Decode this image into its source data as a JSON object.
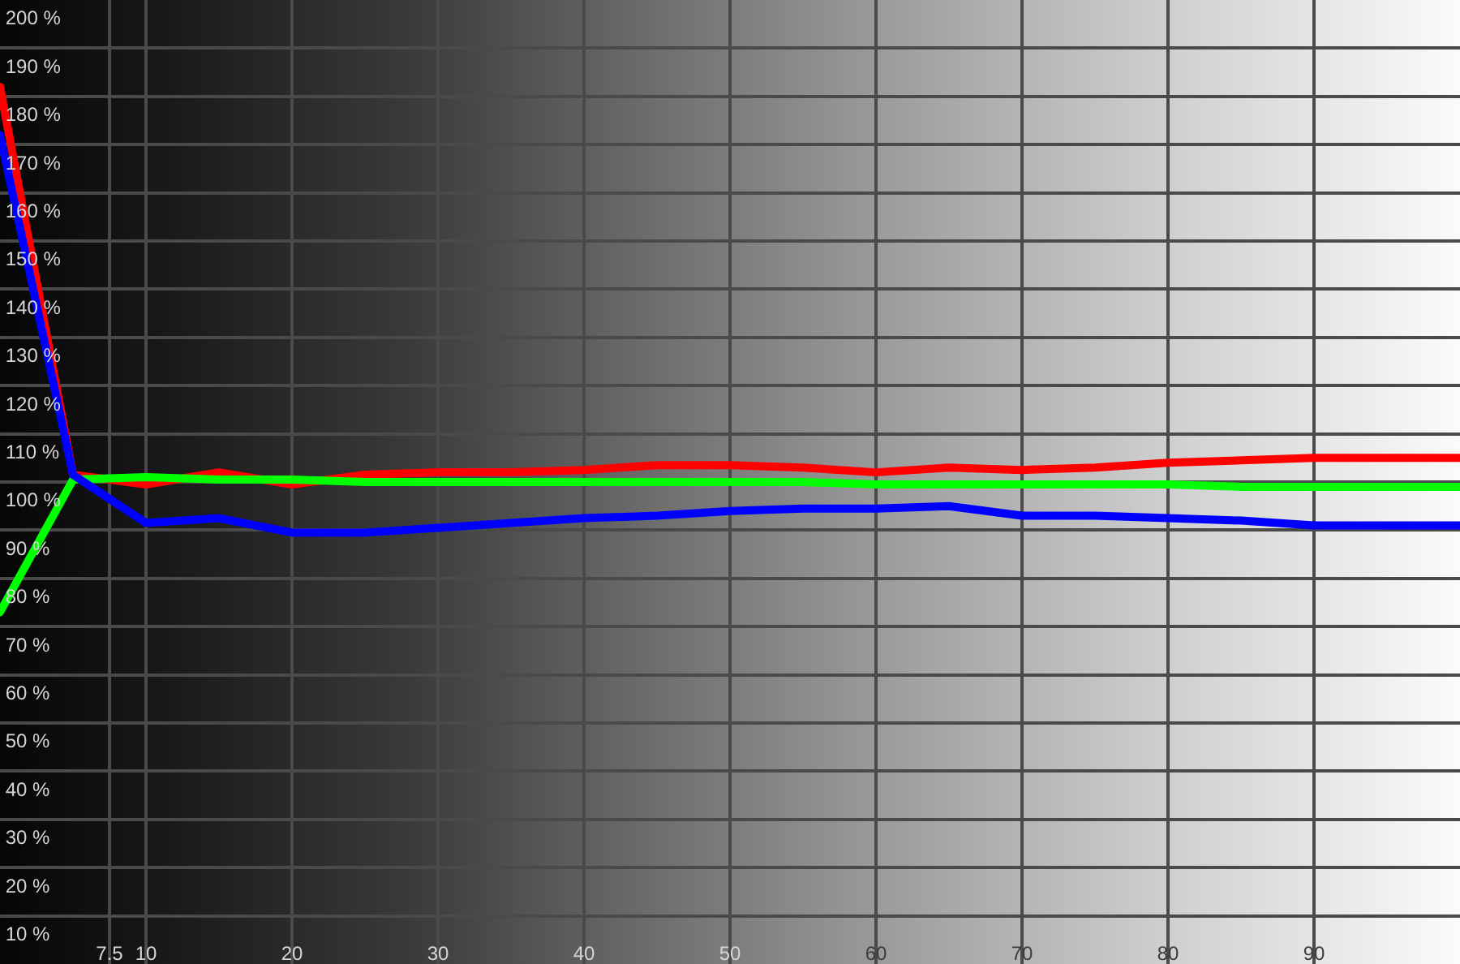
{
  "chart_data": {
    "type": "line",
    "x": [
      0,
      5,
      10,
      15,
      20,
      25,
      30,
      35,
      40,
      45,
      50,
      55,
      60,
      65,
      70,
      75,
      80,
      85,
      90,
      95,
      100
    ],
    "series": [
      {
        "color": "#ff0000",
        "values": [
          182,
          101.5,
          99.5,
          102,
          99.5,
          101.5,
          102,
          102,
          102.5,
          103.5,
          103.5,
          103,
          102,
          103,
          102.5,
          103,
          104,
          104.5,
          105,
          105,
          105
        ]
      },
      {
        "color": "#00ff00",
        "values": [
          73,
          100.5,
          101,
          100.5,
          100.5,
          100,
          100,
          100,
          100,
          100,
          100,
          100,
          99.5,
          99.5,
          99.5,
          99.5,
          99.5,
          99,
          99,
          99,
          99
        ]
      },
      {
        "color": "#0000ff",
        "values": [
          172,
          101.5,
          91.5,
          92.5,
          89.5,
          89.5,
          90.5,
          91.5,
          92.5,
          93,
          94,
          94.5,
          94.5,
          95,
          93,
          93,
          92.5,
          92,
          91,
          91,
          91
        ]
      }
    ],
    "xlim": [
      0,
      100
    ],
    "ylim": [
      0,
      200
    ],
    "xticks": [
      7.5,
      10,
      20,
      30,
      40,
      50,
      60,
      70,
      80,
      90
    ],
    "yticks": [
      {
        "value": 10,
        "label": "10 %"
      },
      {
        "value": 20,
        "label": "20 %"
      },
      {
        "value": 30,
        "label": "30 %"
      },
      {
        "value": 40,
        "label": "40 %"
      },
      {
        "value": 50,
        "label": "50 %"
      },
      {
        "value": 60,
        "label": "60 %"
      },
      {
        "value": 70,
        "label": "70 %"
      },
      {
        "value": 80,
        "label": "80 %"
      },
      {
        "value": 90,
        "label": "90 %"
      },
      {
        "value": 100,
        "label": "100 %"
      },
      {
        "value": 110,
        "label": "110 %"
      },
      {
        "value": 120,
        "label": "120 %"
      },
      {
        "value": 130,
        "label": "130 %"
      },
      {
        "value": 140,
        "label": "140 %"
      },
      {
        "value": 150,
        "label": "150 %"
      },
      {
        "value": 160,
        "label": "160 %"
      },
      {
        "value": 170,
        "label": "170 %"
      },
      {
        "value": 180,
        "label": "180 %"
      },
      {
        "value": 190,
        "label": "190 %"
      },
      {
        "value": 200,
        "label": "200 %"
      }
    ],
    "grid": true,
    "legend": false,
    "marker": "none",
    "line_style": "solid"
  }
}
